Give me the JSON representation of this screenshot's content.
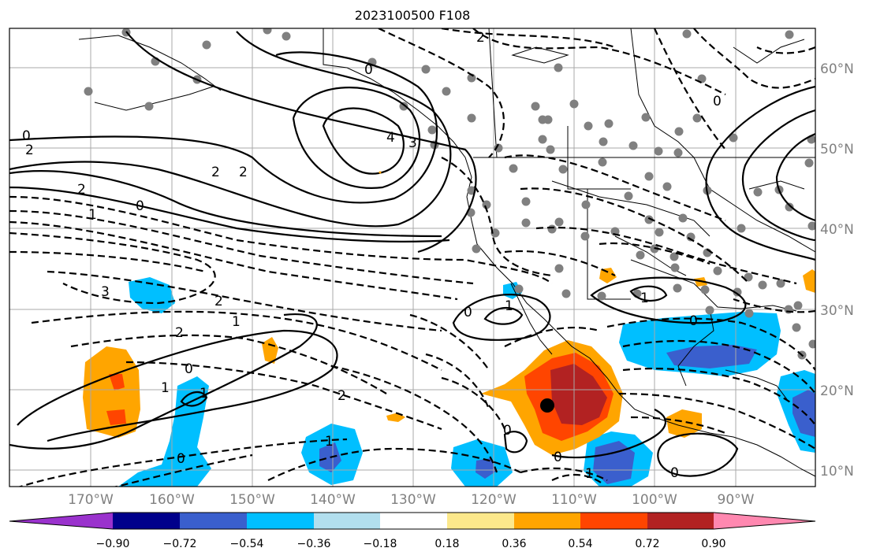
{
  "title": "2023100500 F108",
  "lat_labels": [
    "60°N",
    "50°N",
    "40°N",
    "30°N",
    "20°N",
    "10°N"
  ],
  "lon_labels": [
    "170°W",
    "160°W",
    "150°W",
    "140°W",
    "130°W",
    "120°W",
    "110°W",
    "100°W",
    "90°W"
  ],
  "colorbar": {
    "tick_labels": [
      "−0.90",
      "−0.72",
      "−0.54",
      "−0.36",
      "−0.18",
      "0.18",
      "0.36",
      "0.54",
      "0.72",
      "0.90"
    ],
    "colors": [
      "#9a32cd",
      "#00008b",
      "#3a5fcd",
      "#00bfff",
      "#b2dfee",
      "#ffffff",
      "#fce88b",
      "#ffa500",
      "#ff4500",
      "#b22222",
      "#ff88b0"
    ]
  },
  "contour_labels": [
    "2",
    "0",
    "2",
    "1",
    "0",
    "2",
    "2",
    "4",
    "3",
    "0",
    "3",
    "2",
    "1",
    "2",
    "1",
    "0",
    "1",
    "1",
    "0",
    "2",
    "2",
    "0",
    "0",
    "1",
    "0",
    "1",
    "0",
    "0",
    "1",
    "0"
  ],
  "fill_colors": {
    "neg_light": "#00bfff",
    "neg_mid": "#3a5fcd",
    "pos_light": "#ffa500",
    "pos_mid": "#ff4500",
    "pos_dark": "#b22222"
  }
}
